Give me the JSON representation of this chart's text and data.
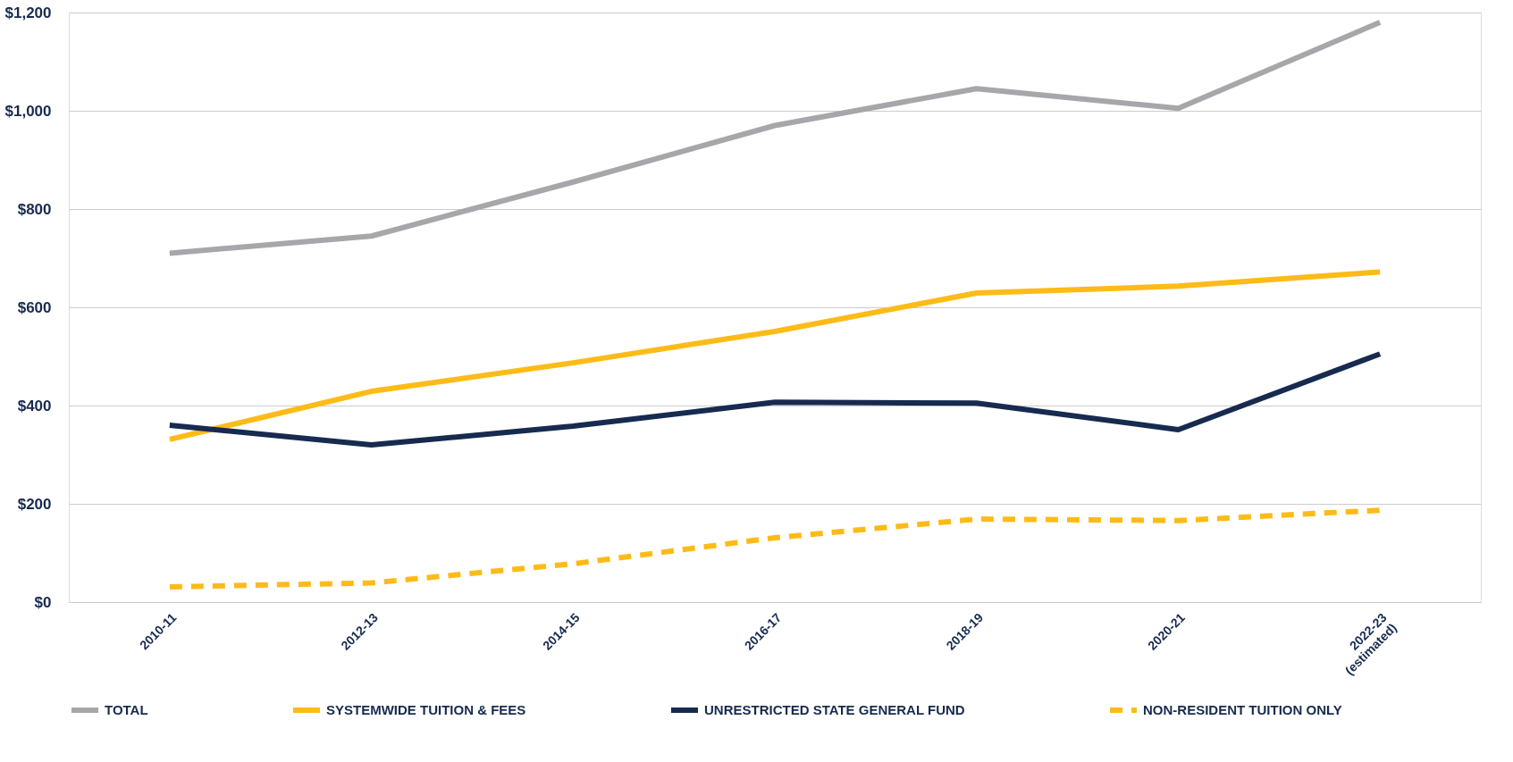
{
  "chart_data": {
    "type": "line",
    "categories": [
      "2010-11",
      "2012-13",
      "2014-15",
      "2016-17",
      "2018-19",
      "2020-21",
      "2022-23\n(estimated)"
    ],
    "series": [
      {
        "name": "TOTAL",
        "color": "#a7a7ab",
        "line_style": "solid",
        "values": [
          710,
          745,
          855,
          970,
          1045,
          1005,
          1180
        ]
      },
      {
        "name": "SYSTEMWIDE TUITION & FEES",
        "color": "#fdbb17",
        "line_style": "solid",
        "values": [
          331,
          429,
          487,
          551,
          629,
          643,
          672
        ]
      },
      {
        "name": "UNRESTRICTED STATE GENERAL FUND",
        "color": "#172a4f",
        "line_style": "solid",
        "values": [
          360,
          320,
          358,
          407,
          405,
          351,
          505
        ]
      },
      {
        "name": "NON-RESIDENT TUITION ONLY",
        "color": "#fdbb17",
        "line_style": "dashed",
        "values": [
          31,
          39,
          78,
          131,
          169,
          166,
          187
        ]
      }
    ],
    "ylim": [
      0,
      1200
    ],
    "yticks": [
      {
        "value": 0,
        "label": "$0"
      },
      {
        "value": 200,
        "label": "$200"
      },
      {
        "value": 400,
        "label": "$400"
      },
      {
        "value": 600,
        "label": "$600"
      },
      {
        "value": 800,
        "label": "$800"
      },
      {
        "value": 1000,
        "label": "$1,000"
      },
      {
        "value": 1200,
        "label": "$1,200"
      }
    ],
    "grid": "y",
    "legend": "bottom",
    "marker": "none"
  }
}
